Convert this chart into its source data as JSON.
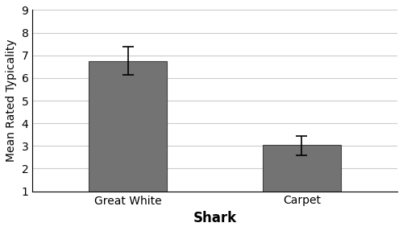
{
  "categories": [
    "Great White",
    "Carpet"
  ],
  "values": [
    6.75,
    3.05
  ],
  "errors_upper": [
    0.62,
    0.4
  ],
  "errors_lower": [
    0.62,
    0.45
  ],
  "bar_color": "#737373",
  "bar_edgecolor": "#404040",
  "xlabel": "Shark",
  "ylabel": "Mean Rated Typicality",
  "ylim_min": 1,
  "ylim_max": 9,
  "yticks": [
    1,
    2,
    3,
    4,
    5,
    6,
    7,
    8,
    9
  ],
  "bar_width": 0.45,
  "xlabel_fontsize": 12,
  "ylabel_fontsize": 10,
  "tick_fontsize": 10,
  "xlabel_bold": true,
  "background_color": "#ffffff",
  "grid_color": "#cccccc",
  "errorbar_color": "#000000",
  "capsize": 5,
  "errorbar_linewidth": 1.2,
  "capthick": 1.2
}
